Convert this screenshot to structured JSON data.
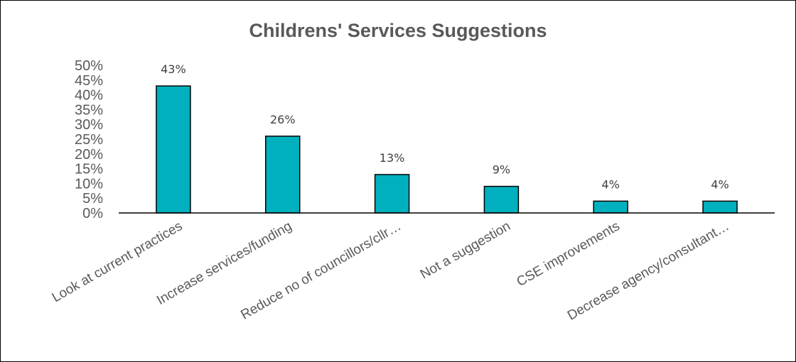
{
  "chart_data": {
    "type": "bar",
    "title": "Childrens' Services Suggestions",
    "categories": [
      "Look at current practices",
      "Increase services/funding",
      "Reduce no of councillors/cllr…",
      "Not a suggestion",
      "CSE improvements",
      "Decrease agency/consultant…"
    ],
    "values": [
      43,
      26,
      13,
      9,
      4,
      4
    ],
    "data_labels": [
      "43%",
      "26%",
      "13%",
      "9%",
      "4%",
      "4%"
    ],
    "ylim": [
      0,
      50
    ],
    "yticks": [
      "0%",
      "5%",
      "10%",
      "15%",
      "20%",
      "25%",
      "30%",
      "35%",
      "40%",
      "45%",
      "50%"
    ],
    "xlabel": "",
    "ylabel": "",
    "grid": false,
    "legend": "none",
    "bar_color": "#00B0BE"
  }
}
